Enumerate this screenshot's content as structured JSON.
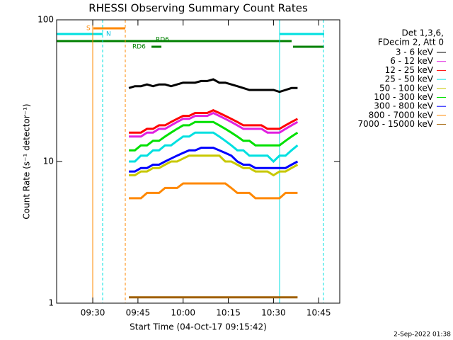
{
  "chart_data": {
    "type": "line",
    "title": "RHESSI Observing Summary Count Rates",
    "xlabel": "Start Time (04-Oct-17 09:15:42)",
    "ylabel": "Count Rate (s⁻¹ detector⁻¹)",
    "legend_title": [
      "Det 1,3,6,",
      "FDecim 2, Att 0"
    ],
    "footer": "2-Sep-2022 01:38",
    "annotations": [
      "S",
      "N",
      "RD6",
      "RD6"
    ],
    "log_y": true,
    "ylim": [
      1,
      100
    ],
    "yticks": [
      1,
      10,
      100
    ],
    "xlim": [
      "09:18",
      "10:52"
    ],
    "xticks": [
      "09:30",
      "09:45",
      "10:00",
      "10:15",
      "10:30",
      "10:45"
    ],
    "x": [
      "09:42",
      "09:44",
      "09:46",
      "09:48",
      "09:50",
      "09:52",
      "09:54",
      "09:56",
      "09:58",
      "10:00",
      "10:02",
      "10:04",
      "10:06",
      "10:08",
      "10:10",
      "10:12",
      "10:14",
      "10:16",
      "10:18",
      "10:20",
      "10:22",
      "10:24",
      "10:26",
      "10:28",
      "10:30",
      "10:32",
      "10:34",
      "10:36",
      "10:38"
    ],
    "series": [
      {
        "name": "3 - 6 keV",
        "color": "#000000",
        "values": [
          33,
          34,
          34,
          35,
          34,
          35,
          35,
          34,
          35,
          36,
          36,
          36,
          37,
          37,
          38,
          36,
          36,
          35,
          34,
          33,
          32,
          32,
          32,
          32,
          32,
          31,
          32,
          33,
          33
        ]
      },
      {
        "name": "6 - 12 keV",
        "color": "#e020e0",
        "values": [
          15,
          15,
          15,
          16,
          16,
          17,
          17,
          18,
          19,
          20,
          20,
          21,
          21,
          21,
          22,
          21,
          20,
          19,
          18,
          17,
          17,
          17,
          17,
          16,
          16,
          16,
          17,
          18,
          19
        ]
      },
      {
        "name": "12 - 25 keV",
        "color": "#ff0000",
        "values": [
          16,
          16,
          16,
          17,
          17,
          18,
          18,
          19,
          20,
          21,
          21,
          22,
          22,
          22,
          23,
          22,
          21,
          20,
          19,
          18,
          18,
          18,
          18,
          17,
          17,
          17,
          18,
          19,
          20
        ]
      },
      {
        "name": "25 - 50 keV",
        "color": "#00e0e0",
        "values": [
          10,
          10,
          11,
          11,
          12,
          12,
          13,
          13,
          14,
          15,
          15,
          16,
          16,
          16,
          16,
          15,
          14,
          13,
          12,
          12,
          11,
          11,
          11,
          11,
          10,
          11,
          11,
          12,
          13
        ]
      },
      {
        "name": "50 - 100 keV",
        "color": "#c8c800",
        "values": [
          8,
          8,
          8.5,
          8.5,
          9,
          9,
          9.5,
          10,
          10,
          10.5,
          11,
          11,
          11,
          11,
          11,
          11,
          10,
          10,
          9.5,
          9,
          9,
          8.5,
          8.5,
          8.5,
          8,
          8.5,
          8.5,
          9,
          9.5
        ]
      },
      {
        "name": "100 - 300 keV",
        "color": "#00e000",
        "values": [
          12,
          12,
          13,
          13,
          14,
          14,
          15,
          16,
          17,
          18,
          18,
          19,
          19,
          19,
          19,
          18,
          17,
          16,
          15,
          14,
          14,
          13,
          13,
          13,
          13,
          13,
          14,
          15,
          16
        ]
      },
      {
        "name": "300 - 800 keV",
        "color": "#0000ff",
        "values": [
          8.5,
          8.5,
          9,
          9,
          9.5,
          9.5,
          10,
          10.5,
          11,
          11.5,
          12,
          12,
          12.5,
          12.5,
          12.5,
          12,
          11.5,
          11,
          10,
          9.5,
          9.5,
          9,
          9,
          9,
          9,
          9,
          9,
          9.5,
          10
        ]
      },
      {
        "name": "800 - 7000 keV",
        "color": "#ff8800",
        "values": [
          5.5,
          5.5,
          5.5,
          6,
          6,
          6,
          6.5,
          6.5,
          6.5,
          7,
          7,
          7,
          7,
          7,
          7,
          7,
          7,
          6.5,
          6,
          6,
          6,
          5.5,
          5.5,
          5.5,
          5.5,
          5.5,
          6,
          6,
          6
        ]
      },
      {
        "name": "7000 - 15000 keV",
        "color": "#a06000",
        "values": [
          1.1,
          1.1,
          1.1,
          1.1,
          1.1,
          1.1,
          1.1,
          1.1,
          1.1,
          1.1,
          1.1,
          1.1,
          1.1,
          1.1,
          1.1,
          1.1,
          1.1,
          1.1,
          1.1,
          1.1,
          1.1,
          1.1,
          1.1,
          1.1,
          1.1,
          1.1,
          1.1,
          1.1,
          1.1
        ]
      }
    ]
  }
}
